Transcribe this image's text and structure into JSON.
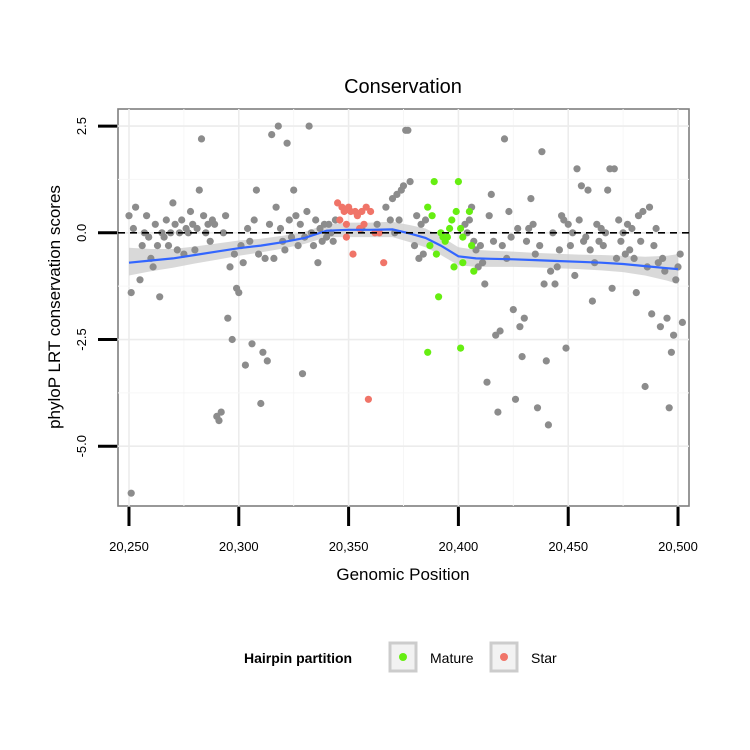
{
  "chart_data": {
    "type": "scatter",
    "title": "Conservation",
    "xlabel": "Genomic Position",
    "ylabel": "phyloP LRT conservation scores",
    "xlim": [
      20245,
      20505
    ],
    "ylim": [
      -6.4,
      2.9
    ],
    "x_ticks": [
      20250,
      20300,
      20350,
      20400,
      20450,
      20500
    ],
    "x_tick_labels": [
      "20,250",
      "20,300",
      "20,350",
      "20,400",
      "20,450",
      "20,500"
    ],
    "y_ticks": [
      2.5,
      0,
      -2.5,
      -5
    ],
    "y_tick_labels": [
      "2.5",
      "0.0",
      "-2.5",
      "-5.0"
    ],
    "reference_line": {
      "y": 0,
      "style": "dashed"
    },
    "grid": true,
    "legend": {
      "title": "Hairpin partition",
      "placement": "bottom",
      "entries": [
        {
          "label": "Mature",
          "color": "#66ee11"
        },
        {
          "label": "Star",
          "color": "#f07468"
        }
      ]
    },
    "series": [
      {
        "partition": "none",
        "color": "#8c8c8c",
        "points": [
          [
            20250,
            0.4
          ],
          [
            20251,
            -1.4
          ],
          [
            20252,
            0.1
          ],
          [
            20253,
            0.6
          ],
          [
            20255,
            -1.1
          ],
          [
            20256,
            -0.3
          ],
          [
            20257,
            0.0
          ],
          [
            20258,
            0.4
          ],
          [
            20259,
            -0.1
          ],
          [
            20260,
            -0.6
          ],
          [
            20261,
            -0.8
          ],
          [
            20262,
            0.2
          ],
          [
            20263,
            -0.3
          ],
          [
            20264,
            -1.5
          ],
          [
            20265,
            0.0
          ],
          [
            20266,
            -0.1
          ],
          [
            20267,
            0.3
          ],
          [
            20268,
            -0.3
          ],
          [
            20269,
            0.0
          ],
          [
            20270,
            0.7
          ],
          [
            20271,
            0.2
          ],
          [
            20272,
            -0.4
          ],
          [
            20273,
            0.0
          ],
          [
            20274,
            0.3
          ],
          [
            20275,
            -0.5
          ],
          [
            20276,
            0.1
          ],
          [
            20277,
            0.0
          ],
          [
            20278,
            0.5
          ],
          [
            20279,
            0.2
          ],
          [
            20280,
            -0.4
          ],
          [
            20281,
            0.1
          ],
          [
            20282,
            1.0
          ],
          [
            20283,
            2.2
          ],
          [
            20284,
            0.4
          ],
          [
            20285,
            0.0
          ],
          [
            20286,
            0.2
          ],
          [
            20287,
            -0.2
          ],
          [
            20288,
            0.3
          ],
          [
            20289,
            0.2
          ],
          [
            20290,
            -4.3
          ],
          [
            20291,
            -4.4
          ],
          [
            20292,
            -4.2
          ],
          [
            20293,
            0.0
          ],
          [
            20294,
            0.4
          ],
          [
            20295,
            -2.0
          ],
          [
            20296,
            -0.8
          ],
          [
            20297,
            -2.5
          ],
          [
            20298,
            -0.5
          ],
          [
            20299,
            -1.3
          ],
          [
            20300,
            -1.4
          ],
          [
            20301,
            -0.3
          ],
          [
            20302,
            -0.7
          ],
          [
            20303,
            -3.1
          ],
          [
            20304,
            0.1
          ],
          [
            20305,
            -0.2
          ],
          [
            20306,
            -2.6
          ],
          [
            20307,
            0.3
          ],
          [
            20308,
            1.0
          ],
          [
            20309,
            -0.5
          ],
          [
            20310,
            -4.0
          ],
          [
            20311,
            -2.8
          ],
          [
            20312,
            -0.6
          ],
          [
            20313,
            -3.0
          ],
          [
            20314,
            0.2
          ],
          [
            20315,
            2.3
          ],
          [
            20316,
            -0.6
          ],
          [
            20317,
            0.6
          ],
          [
            20318,
            2.5
          ],
          [
            20319,
            0.1
          ],
          [
            20320,
            -0.2
          ],
          [
            20321,
            -0.4
          ],
          [
            20322,
            2.1
          ],
          [
            20323,
            0.3
          ],
          [
            20324,
            -0.1
          ],
          [
            20325,
            1.0
          ],
          [
            20326,
            0.4
          ],
          [
            20327,
            -0.3
          ],
          [
            20328,
            0.2
          ],
          [
            20329,
            -3.3
          ],
          [
            20330,
            -0.1
          ],
          [
            20331,
            0.5
          ],
          [
            20332,
            2.5
          ],
          [
            20333,
            0.0
          ],
          [
            20334,
            -0.3
          ],
          [
            20335,
            0.3
          ],
          [
            20336,
            -0.7
          ],
          [
            20337,
            0.1
          ],
          [
            20338,
            -0.2
          ],
          [
            20339,
            0.2
          ],
          [
            20340,
            -0.1
          ],
          [
            20341,
            0.2
          ],
          [
            20342,
            0.0
          ],
          [
            20343,
            -0.2
          ],
          [
            20344,
            0.3
          ],
          [
            20356,
            0.1
          ],
          [
            20363,
            0.2
          ],
          [
            20367,
            0.6
          ],
          [
            20369,
            0.3
          ],
          [
            20370,
            0.8
          ],
          [
            20371,
            0.0
          ],
          [
            20372,
            0.9
          ],
          [
            20373,
            0.3
          ],
          [
            20374,
            1.0
          ],
          [
            20375,
            1.1
          ],
          [
            20376,
            2.4
          ],
          [
            20377,
            2.4
          ],
          [
            20378,
            1.2
          ],
          [
            20380,
            -0.3
          ],
          [
            20381,
            0.4
          ],
          [
            20382,
            -0.6
          ],
          [
            20383,
            0.2
          ],
          [
            20384,
            -0.5
          ],
          [
            20385,
            0.3
          ],
          [
            20403,
            0.2
          ],
          [
            20404,
            0.0
          ],
          [
            20405,
            0.3
          ],
          [
            20406,
            0.6
          ],
          [
            20407,
            -0.2
          ],
          [
            20408,
            -0.4
          ],
          [
            20409,
            -0.8
          ],
          [
            20410,
            -0.3
          ],
          [
            20411,
            -0.7
          ],
          [
            20412,
            -1.2
          ],
          [
            20413,
            -3.5
          ],
          [
            20414,
            0.4
          ],
          [
            20415,
            0.9
          ],
          [
            20416,
            -0.2
          ],
          [
            20417,
            -2.4
          ],
          [
            20418,
            -4.2
          ],
          [
            20419,
            -2.3
          ],
          [
            20420,
            -0.3
          ],
          [
            20421,
            2.2
          ],
          [
            20422,
            -0.6
          ],
          [
            20423,
            0.5
          ],
          [
            20424,
            -0.1
          ],
          [
            20425,
            -1.8
          ],
          [
            20426,
            -3.9
          ],
          [
            20427,
            0.1
          ],
          [
            20428,
            -2.2
          ],
          [
            20429,
            -2.9
          ],
          [
            20430,
            -2.0
          ],
          [
            20431,
            -0.2
          ],
          [
            20432,
            0.1
          ],
          [
            20433,
            0.8
          ],
          [
            20434,
            0.2
          ],
          [
            20435,
            -0.5
          ],
          [
            20436,
            -4.1
          ],
          [
            20437,
            -0.3
          ],
          [
            20438,
            1.9
          ],
          [
            20439,
            -1.2
          ],
          [
            20440,
            -3.0
          ],
          [
            20441,
            -4.5
          ],
          [
            20442,
            -0.9
          ],
          [
            20443,
            0.0
          ],
          [
            20444,
            -1.2
          ],
          [
            20445,
            -0.8
          ],
          [
            20446,
            -0.4
          ],
          [
            20447,
            0.4
          ],
          [
            20448,
            0.3
          ],
          [
            20449,
            -2.7
          ],
          [
            20450,
            0.2
          ],
          [
            20451,
            -0.3
          ],
          [
            20452,
            0.0
          ],
          [
            20453,
            -1.0
          ],
          [
            20454,
            1.5
          ],
          [
            20455,
            0.3
          ],
          [
            20456,
            1.1
          ],
          [
            20457,
            -0.2
          ],
          [
            20458,
            -0.1
          ],
          [
            20459,
            1.0
          ],
          [
            20460,
            -0.4
          ],
          [
            20461,
            -1.6
          ],
          [
            20462,
            -0.7
          ],
          [
            20463,
            0.2
          ],
          [
            20464,
            -0.2
          ],
          [
            20465,
            0.1
          ],
          [
            20466,
            -0.3
          ],
          [
            20467,
            0.0
          ],
          [
            20468,
            1.0
          ],
          [
            20469,
            1.5
          ],
          [
            20470,
            -1.3
          ],
          [
            20471,
            1.5
          ],
          [
            20472,
            -0.6
          ],
          [
            20473,
            0.3
          ],
          [
            20474,
            -0.2
          ],
          [
            20475,
            0.0
          ],
          [
            20476,
            -0.5
          ],
          [
            20477,
            0.2
          ],
          [
            20478,
            -0.4
          ],
          [
            20479,
            0.1
          ],
          [
            20480,
            -0.6
          ],
          [
            20481,
            -1.4
          ],
          [
            20482,
            0.4
          ],
          [
            20483,
            -0.2
          ],
          [
            20484,
            0.5
          ],
          [
            20485,
            -3.6
          ],
          [
            20486,
            -0.8
          ],
          [
            20487,
            0.6
          ],
          [
            20488,
            -1.9
          ],
          [
            20489,
            -0.3
          ],
          [
            20490,
            0.1
          ],
          [
            20491,
            -0.7
          ],
          [
            20492,
            -2.2
          ],
          [
            20493,
            -0.6
          ],
          [
            20494,
            -0.9
          ],
          [
            20495,
            -2.0
          ],
          [
            20496,
            -4.1
          ],
          [
            20497,
            -2.8
          ],
          [
            20498,
            -2.4
          ],
          [
            20499,
            -1.1
          ],
          [
            20500,
            -0.8
          ],
          [
            20501,
            -0.5
          ],
          [
            20502,
            -2.1
          ],
          [
            20251,
            -6.1
          ]
        ]
      },
      {
        "partition": "Mature",
        "color": "#66ee11",
        "points": [
          [
            20386,
            0.6
          ],
          [
            20387,
            -0.3
          ],
          [
            20388,
            0.4
          ],
          [
            20389,
            1.2
          ],
          [
            20390,
            -0.5
          ],
          [
            20391,
            -1.5
          ],
          [
            20392,
            0.0
          ],
          [
            20393,
            -0.1
          ],
          [
            20394,
            -0.2
          ],
          [
            20395,
            -0.1
          ],
          [
            20396,
            0.1
          ],
          [
            20397,
            0.3
          ],
          [
            20398,
            -0.8
          ],
          [
            20399,
            0.5
          ],
          [
            20400,
            1.2
          ],
          [
            20401,
            0.1
          ],
          [
            20402,
            -0.1
          ],
          [
            20386,
            -2.8
          ],
          [
            20401,
            -2.7
          ],
          [
            20407,
            -0.9
          ],
          [
            20402,
            -0.7
          ],
          [
            20405,
            0.5
          ],
          [
            20406,
            -0.3
          ]
        ]
      },
      {
        "partition": "Star",
        "color": "#f07468",
        "points": [
          [
            20345,
            0.7
          ],
          [
            20347,
            0.6
          ],
          [
            20348,
            0.5
          ],
          [
            20349,
            0.2
          ],
          [
            20350,
            0.6
          ],
          [
            20351,
            0.5
          ],
          [
            20352,
            -0.5
          ],
          [
            20353,
            0.5
          ],
          [
            20354,
            0.4
          ],
          [
            20355,
            0.1
          ],
          [
            20356,
            0.5
          ],
          [
            20357,
            0.2
          ],
          [
            20358,
            0.6
          ],
          [
            20359,
            -3.9
          ],
          [
            20360,
            0.5
          ],
          [
            20362,
            0.0
          ],
          [
            20364,
            0.0
          ],
          [
            20366,
            -0.7
          ],
          [
            20349,
            -0.1
          ],
          [
            20346,
            0.3
          ]
        ]
      }
    ],
    "smooth": {
      "color": "#3366ff",
      "ribbon_color": "#cccccc",
      "x": [
        20250,
        20260,
        20270,
        20280,
        20290,
        20300,
        20310,
        20320,
        20330,
        20340,
        20350,
        20360,
        20370,
        20378,
        20385,
        20392,
        20400,
        20408,
        20415,
        20425,
        20435,
        20445,
        20455,
        20465,
        20475,
        20485,
        20495,
        20500
      ],
      "y": [
        -0.7,
        -0.65,
        -0.6,
        -0.52,
        -0.44,
        -0.36,
        -0.3,
        -0.22,
        -0.12,
        0.05,
        0.07,
        0.07,
        0.08,
        -0.02,
        -0.12,
        -0.3,
        -0.55,
        -0.6,
        -0.61,
        -0.62,
        -0.64,
        -0.66,
        -0.68,
        -0.7,
        -0.73,
        -0.78,
        -0.83,
        -0.85
      ],
      "lower": [
        -1.0,
        -0.9,
        -0.82,
        -0.72,
        -0.63,
        -0.54,
        -0.46,
        -0.37,
        -0.26,
        -0.1,
        -0.1,
        -0.1,
        -0.1,
        -0.22,
        -0.34,
        -0.52,
        -0.76,
        -0.8,
        -0.8,
        -0.8,
        -0.81,
        -0.83,
        -0.85,
        -0.88,
        -0.92,
        -1.0,
        -1.12,
        -1.2
      ],
      "upper": [
        -0.35,
        -0.38,
        -0.38,
        -0.32,
        -0.25,
        -0.18,
        -0.14,
        -0.07,
        0.02,
        0.2,
        0.24,
        0.24,
        0.26,
        0.18,
        0.1,
        -0.08,
        -0.34,
        -0.4,
        -0.42,
        -0.44,
        -0.47,
        -0.49,
        -0.51,
        -0.52,
        -0.54,
        -0.56,
        -0.54,
        -0.5
      ]
    }
  }
}
